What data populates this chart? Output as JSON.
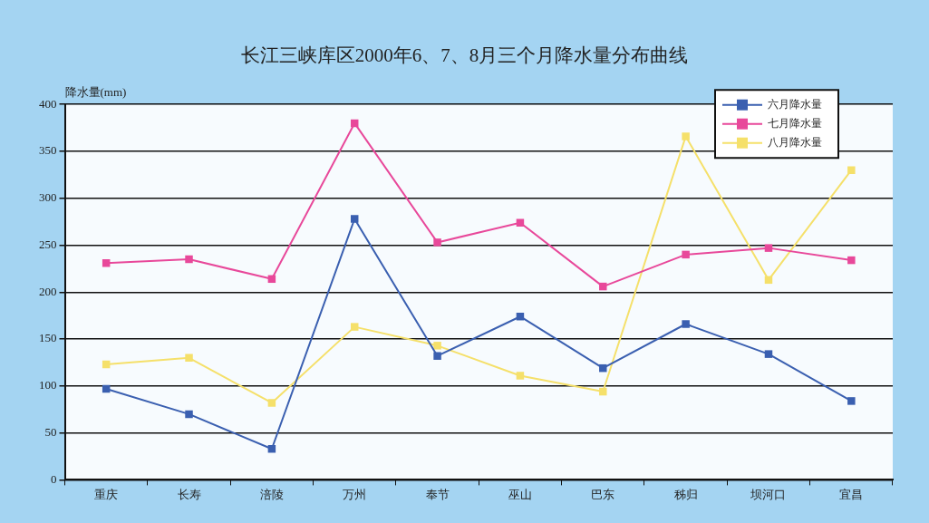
{
  "chart_data": {
    "type": "line",
    "title": "长江三峡库区2000年6、7、8月三个月降水量分布曲线",
    "ylabel": "降水量(mm)",
    "categories": [
      "重庆",
      "长寿",
      "涪陵",
      "万州",
      "奉节",
      "巫山",
      "巴东",
      "秭归",
      "坝河口",
      "宜昌"
    ],
    "series": [
      {
        "name": "六月降水量",
        "color": "#3a5fb0",
        "values": [
          97,
          70,
          33,
          278,
          132,
          174,
          119,
          166,
          134,
          84
        ]
      },
      {
        "name": "七月降水量",
        "color": "#e8489a",
        "values": [
          231,
          235,
          214,
          380,
          253,
          274,
          206,
          240,
          247,
          234
        ]
      },
      {
        "name": "八月降水量",
        "color": "#f5e06a",
        "values": [
          123,
          130,
          82,
          163,
          143,
          111,
          94,
          366,
          213,
          330
        ]
      }
    ],
    "ylim": [
      0,
      400
    ],
    "yticks": [
      0,
      50,
      100,
      150,
      200,
      250,
      300,
      350,
      400
    ],
    "grid": "y",
    "legend": "top right",
    "marker": "square",
    "line_style": "solid"
  }
}
